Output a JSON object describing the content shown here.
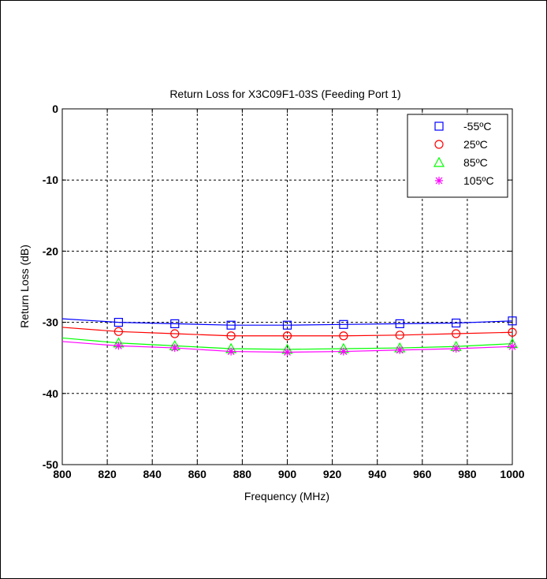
{
  "chart_data": {
    "type": "line",
    "title": "Return Loss for X3C09F1-03S (Feeding Port 1)",
    "xlabel": "Frequency (MHz)",
    "ylabel": "Return Loss (dB)",
    "xlim": [
      800,
      1000
    ],
    "ylim": [
      -50,
      0
    ],
    "x_ticks": [
      "800",
      "820",
      "840",
      "860",
      "880",
      "900",
      "920",
      "940",
      "960",
      "980",
      "1000"
    ],
    "y_ticks": [
      "0",
      "-10",
      "-20",
      "-30",
      "-40",
      "-50"
    ],
    "grid": true,
    "legend_position": "top-right",
    "marker_x": [
      825,
      850,
      875,
      900,
      925,
      950,
      975,
      1000
    ],
    "series": [
      {
        "name": "-55ºC",
        "color": "#0000ff",
        "marker": "square",
        "x": [
          800,
          825,
          850,
          875,
          900,
          925,
          950,
          975,
          1000
        ],
        "values": [
          -29.5,
          -30.0,
          -30.2,
          -30.4,
          -30.4,
          -30.3,
          -30.2,
          -30.1,
          -29.8
        ]
      },
      {
        "name": "25ºC",
        "color": "#ff0000",
        "marker": "circle",
        "x": [
          800,
          825,
          850,
          875,
          900,
          925,
          950,
          975,
          1000
        ],
        "values": [
          -30.7,
          -31.3,
          -31.6,
          -31.9,
          -31.9,
          -31.9,
          -31.8,
          -31.6,
          -31.4
        ]
      },
      {
        "name": "85ºC",
        "color": "#00ff00",
        "marker": "triangle",
        "x": [
          800,
          825,
          850,
          875,
          900,
          925,
          950,
          975,
          1000
        ],
        "values": [
          -32.2,
          -32.9,
          -33.3,
          -33.7,
          -33.8,
          -33.7,
          -33.6,
          -33.4,
          -33.0
        ]
      },
      {
        "name": "105ºC",
        "color": "#ff00ff",
        "marker": "asterisk",
        "x": [
          800,
          825,
          850,
          875,
          900,
          925,
          950,
          975,
          1000
        ],
        "values": [
          -32.7,
          -33.3,
          -33.6,
          -34.1,
          -34.2,
          -34.1,
          -33.9,
          -33.7,
          -33.4
        ]
      }
    ]
  }
}
